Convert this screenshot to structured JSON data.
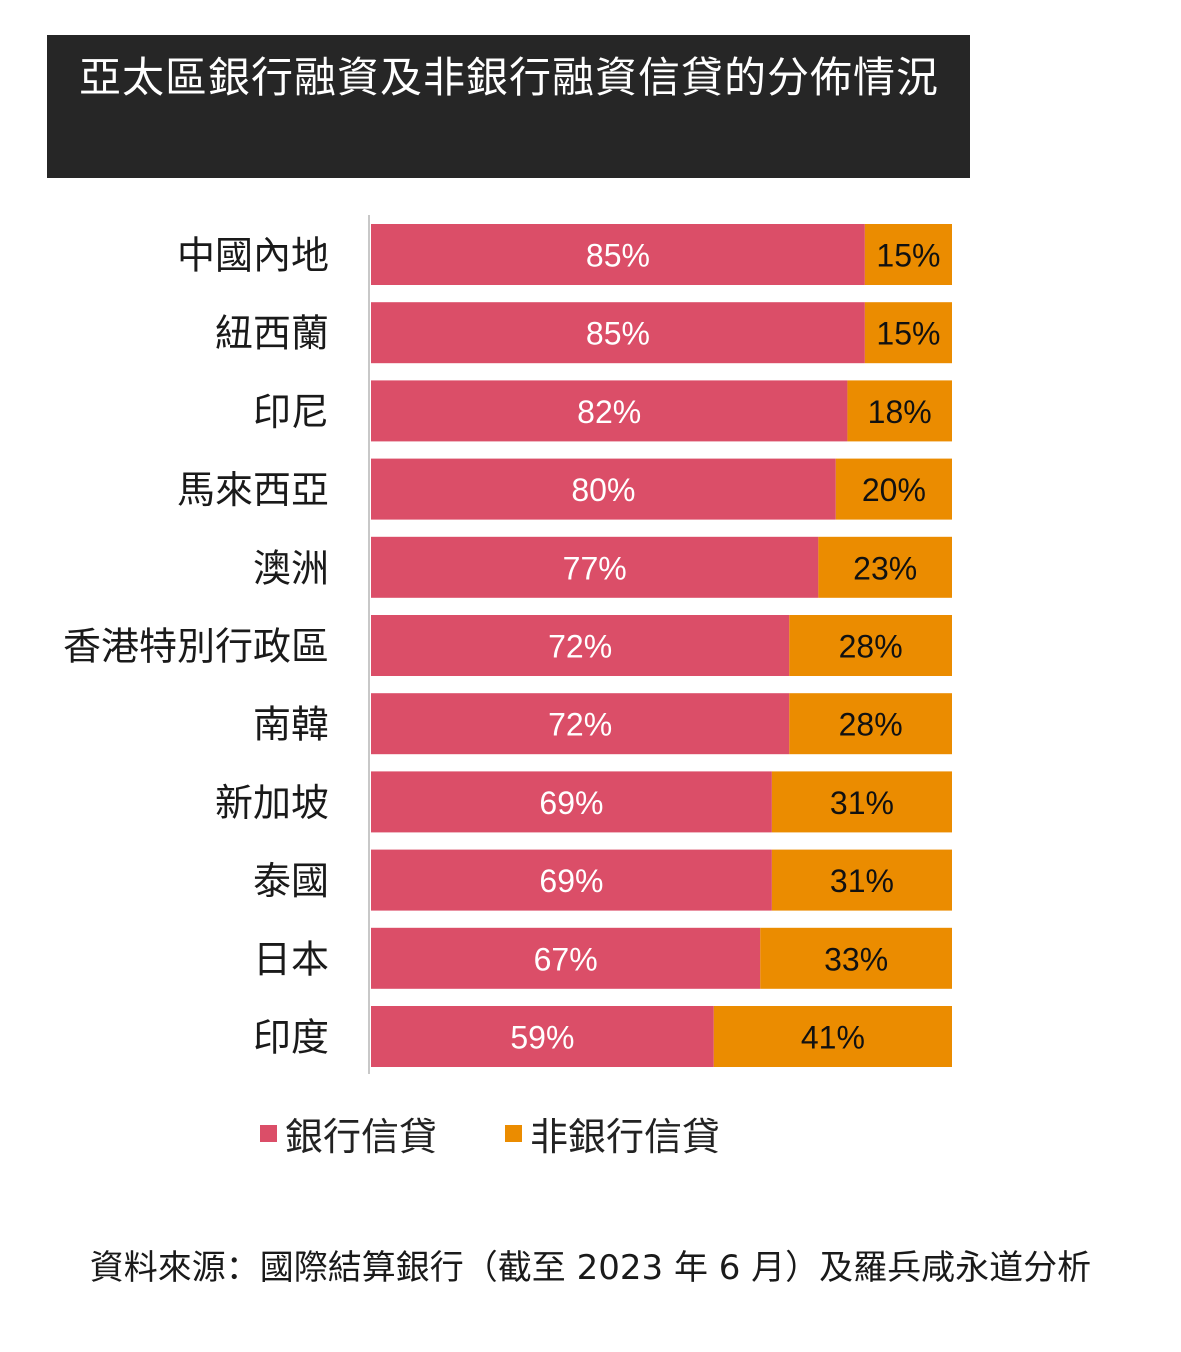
{
  "title": "亞太區銀行融資及非銀行融資信貸的分佈情況",
  "source": "資料來源：國際結算銀行（截至 2023 年 6 月）及羅兵咸永道分析",
  "colors": {
    "bank": "#DB4E68",
    "nonbank": "#EB8C00",
    "title_bg": "#262626"
  },
  "chart_data": {
    "type": "bar",
    "orientation": "horizontal",
    "stacked": true,
    "percent": true,
    "categories": [
      "中國內地",
      "紐西蘭",
      "印尼",
      "馬來西亞",
      "澳洲",
      "香港特別行政區",
      "南韓",
      "新加坡",
      "泰國",
      "日本",
      "印度"
    ],
    "series": [
      {
        "name": "銀行信貸",
        "values": [
          85,
          85,
          82,
          80,
          77,
          72,
          72,
          69,
          69,
          67,
          59
        ],
        "labels": [
          "85%",
          "85%",
          "82%",
          "80%",
          "77%",
          "72%",
          "72%",
          "69%",
          "69%",
          "67%",
          "59%"
        ],
        "color": "#DB4E68"
      },
      {
        "name": "非銀行信貸",
        "values": [
          15,
          15,
          18,
          20,
          23,
          28,
          28,
          31,
          31,
          33,
          41
        ],
        "labels": [
          "15%",
          "15%",
          "18%",
          "20%",
          "23%",
          "28%",
          "28%",
          "31%",
          "31%",
          "33%",
          "41%"
        ],
        "color": "#EB8C00"
      }
    ],
    "xlim": [
      0,
      100
    ],
    "legend": "bottom"
  }
}
